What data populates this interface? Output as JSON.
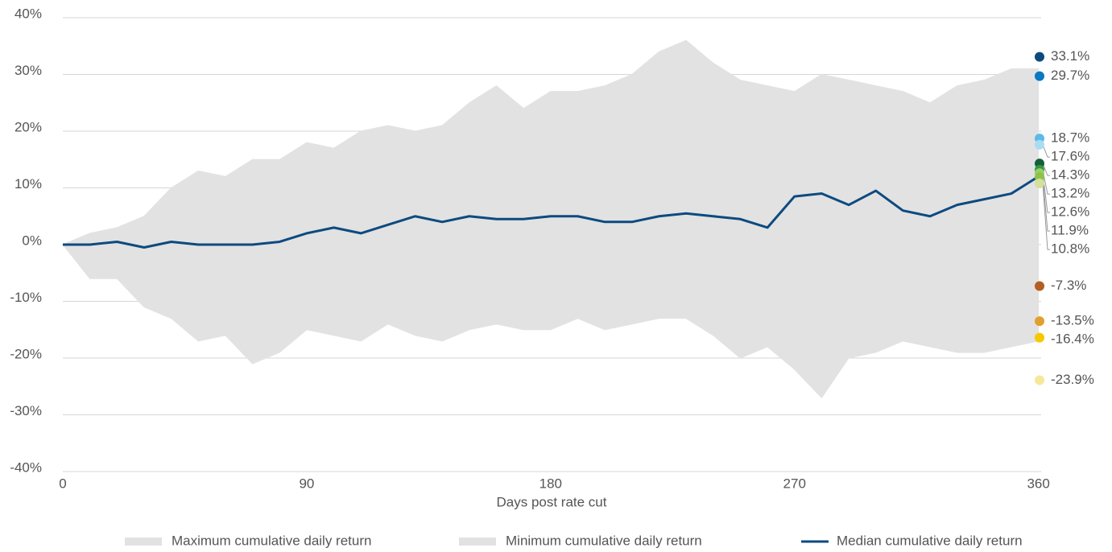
{
  "chart_data": {
    "type": "line",
    "x_label": "Days post rate cut",
    "x": [
      0,
      10,
      20,
      30,
      40,
      50,
      60,
      70,
      80,
      90,
      100,
      110,
      120,
      130,
      140,
      150,
      160,
      170,
      180,
      190,
      200,
      210,
      220,
      230,
      240,
      250,
      260,
      270,
      280,
      290,
      300,
      310,
      320,
      330,
      340,
      350,
      360
    ],
    "series": [
      {
        "name": "Maximum cumulative daily return",
        "color": "#e2e2e2",
        "fill": true,
        "values": [
          0,
          2,
          3,
          5,
          10,
          13,
          12,
          15,
          15,
          18,
          17,
          20,
          21,
          20,
          21,
          25,
          28,
          24,
          27,
          27,
          28,
          30,
          34,
          36,
          32,
          29,
          28,
          27,
          30,
          29,
          28,
          27,
          25,
          28,
          29,
          31,
          31
        ]
      },
      {
        "name": "Minimum cumulative daily return",
        "color": "#e2e2e2",
        "fill": true,
        "values": [
          0,
          -6,
          -6,
          -11,
          -13,
          -17,
          -16,
          -21,
          -19,
          -15,
          -16,
          -17,
          -14,
          -16,
          -17,
          -15,
          -14,
          -15,
          -15,
          -13,
          -15,
          -14,
          -13,
          -13,
          -16,
          -20,
          -18,
          -22,
          -27,
          -20,
          -19,
          -17,
          -18,
          -19,
          -19,
          -18,
          -17
        ]
      },
      {
        "name": "Median cumulative daily return",
        "color": "#0d4a80",
        "fill": false,
        "values": [
          0,
          0,
          0.5,
          -0.5,
          0.5,
          0,
          0,
          0,
          0.5,
          2,
          3,
          2,
          3.5,
          5,
          4,
          5,
          4.5,
          4.5,
          5,
          5,
          4,
          4,
          5,
          5.5,
          5,
          4.5,
          3,
          8.5,
          9,
          7,
          9.5,
          6,
          5,
          7,
          8,
          9,
          12
        ]
      }
    ],
    "end_points": {
      "values": [
        33.1,
        29.7,
        18.7,
        17.6,
        14.3,
        13.2,
        12.6,
        11.9,
        10.8,
        -7.3,
        -13.5,
        -16.4,
        -23.9
      ],
      "value_labels": [
        "33.1%",
        "29.7%",
        "18.7%",
        "17.6%",
        "14.3%",
        "13.2%",
        "12.6%",
        "11.9%",
        "10.8%",
        "-7.3%",
        "-13.5%",
        "-16.4%",
        "-23.9%"
      ],
      "colors": [
        "#0d4a7e",
        "#0a78c2",
        "#5bbbe8",
        "#a9dcf3",
        "#15603a",
        "#2e9a45",
        "#9ccc65",
        "#8bc34a",
        "#d4e09b",
        "#b35f22",
        "#e0a030",
        "#f5c800",
        "#f7e79a"
      ]
    },
    "xlim": [
      0,
      361
    ],
    "xticks": [
      0,
      90,
      180,
      270,
      360
    ],
    "ylim": [
      -40,
      40
    ],
    "yticks": [
      {
        "value": -40,
        "label": "-40%"
      },
      {
        "value": -30,
        "label": "-30%"
      },
      {
        "value": -20,
        "label": "-20%"
      },
      {
        "value": -10,
        "label": "-10%"
      },
      {
        "value": 0,
        "label": "0%"
      },
      {
        "value": 10,
        "label": "10%"
      },
      {
        "value": 20,
        "label": "20%"
      },
      {
        "value": 30,
        "label": "30%"
      },
      {
        "value": 40,
        "label": "40%"
      }
    ],
    "grid": true
  }
}
